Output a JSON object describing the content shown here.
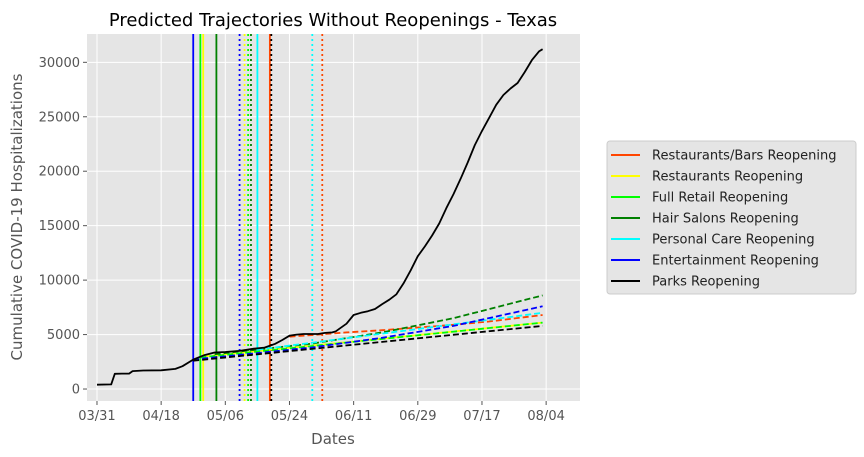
{
  "chart_data": {
    "type": "line",
    "title": "Predicted Trajectories Without Reopenings - Texas",
    "xlabel": "Dates",
    "ylabel": "Cumulative COVID-19 Hospitalizations",
    "x_range_days_from_0331": [
      -2.8,
      135.5
    ],
    "ylim": [
      -1100,
      32600
    ],
    "x_ticks": [
      {
        "label": "03/31",
        "day": 0
      },
      {
        "label": "04/18",
        "day": 18
      },
      {
        "label": "05/06",
        "day": 36
      },
      {
        "label": "05/24",
        "day": 54
      },
      {
        "label": "06/11",
        "day": 72
      },
      {
        "label": "06/29",
        "day": 90
      },
      {
        "label": "07/17",
        "day": 108
      },
      {
        "label": "08/04",
        "day": 126
      }
    ],
    "y_ticks": [
      0,
      5000,
      10000,
      15000,
      20000,
      25000,
      30000
    ],
    "grid": true,
    "legend_position": "right-outside",
    "legend": [
      {
        "name": "Restaurants/Bars Reopening",
        "color": "#ff4500"
      },
      {
        "name": "Restaurants Reopening",
        "color": "#ffff00"
      },
      {
        "name": "Full Retail Reopening",
        "color": "#00ff00"
      },
      {
        "name": "Hair Salons Reopening",
        "color": "#008000"
      },
      {
        "name": "Personal Care Reopening",
        "color": "#00ffff"
      },
      {
        "name": "Entertainment Reopening",
        "color": "#0000ff"
      },
      {
        "name": "Parks Reopening",
        "color": "#000000"
      }
    ],
    "actual_series": {
      "color": "#000000",
      "points": [
        [
          0,
          400
        ],
        [
          4,
          420
        ],
        [
          5,
          1400
        ],
        [
          7,
          1420
        ],
        [
          9,
          1420
        ],
        [
          10,
          1650
        ],
        [
          13,
          1700
        ],
        [
          18,
          1720
        ],
        [
          22,
          1850
        ],
        [
          24,
          2100
        ],
        [
          27,
          2700
        ],
        [
          30,
          3100
        ],
        [
          33,
          3350
        ],
        [
          36,
          3400
        ],
        [
          40,
          3500
        ],
        [
          44,
          3700
        ],
        [
          47,
          3800
        ],
        [
          50,
          4150
        ],
        [
          52,
          4500
        ],
        [
          54,
          4900
        ],
        [
          56,
          5000
        ],
        [
          58,
          5050
        ],
        [
          62,
          5050
        ],
        [
          64,
          5150
        ],
        [
          66,
          5200
        ],
        [
          67,
          5300
        ],
        [
          70,
          6000
        ],
        [
          72,
          6800
        ],
        [
          74,
          7000
        ],
        [
          76,
          7150
        ],
        [
          78,
          7350
        ],
        [
          80,
          7800
        ],
        [
          82,
          8200
        ],
        [
          84,
          8700
        ],
        [
          86,
          9700
        ],
        [
          88,
          10900
        ],
        [
          90,
          12200
        ],
        [
          92,
          13100
        ],
        [
          94,
          14100
        ],
        [
          96,
          15200
        ],
        [
          98,
          16600
        ],
        [
          100,
          17900
        ],
        [
          102,
          19300
        ],
        [
          104,
          20800
        ],
        [
          106,
          22400
        ],
        [
          108,
          23700
        ],
        [
          110,
          24900
        ],
        [
          112,
          26100
        ],
        [
          114,
          27000
        ],
        [
          116,
          27600
        ],
        [
          118,
          28100
        ],
        [
          120,
          29100
        ],
        [
          122,
          30200
        ],
        [
          124,
          31000
        ],
        [
          125,
          31200
        ]
      ]
    },
    "predicted_series": [
      {
        "name": "Restaurants/Bars Reopening",
        "color": "#ff4500",
        "points": [
          [
            54,
            4800
          ],
          [
            62,
            5000
          ],
          [
            70,
            5200
          ],
          [
            80,
            5400
          ],
          [
            90,
            5650
          ],
          [
            100,
            5900
          ],
          [
            110,
            6200
          ],
          [
            125,
            6800
          ]
        ]
      },
      {
        "name": "Restaurants Reopening",
        "color": "#ffff00",
        "points": [
          [
            30,
            3000
          ],
          [
            125,
            6100
          ]
        ]
      },
      {
        "name": "Full Retail Reopening",
        "color": "#00ff00",
        "points": [
          [
            29,
            2900
          ],
          [
            125,
            6100
          ]
        ]
      },
      {
        "name": "Hair Salons Reopening",
        "color": "#008000",
        "points": [
          [
            33,
            3200
          ],
          [
            60,
            4150
          ],
          [
            80,
            5200
          ],
          [
            100,
            6500
          ],
          [
            125,
            8600
          ]
        ]
      },
      {
        "name": "Personal Care Reopening",
        "color": "#00ffff",
        "points": [
          [
            45,
            3600
          ],
          [
            125,
            7000
          ]
        ]
      },
      {
        "name": "Entertainment Reopening",
        "color": "#0000ff",
        "points": [
          [
            27,
            2700
          ],
          [
            60,
            3800
          ],
          [
            80,
            4700
          ],
          [
            100,
            5800
          ],
          [
            125,
            7600
          ]
        ]
      },
      {
        "name": "Parks Reopening",
        "color": "#000000",
        "points": [
          [
            27,
            2600
          ],
          [
            125,
            5800
          ]
        ]
      }
    ],
    "event_lines": [
      {
        "day": 27.0,
        "color": "#0000ff",
        "style": "solid"
      },
      {
        "day": 29.0,
        "color": "#00ff00",
        "style": "solid"
      },
      {
        "day": 29.8,
        "color": "#ffff00",
        "style": "solid"
      },
      {
        "day": 33.5,
        "color": "#008000",
        "style": "solid"
      },
      {
        "day": 40.0,
        "color": "#0000ff",
        "style": "dotted"
      },
      {
        "day": 41.4,
        "color": "#ffff00",
        "style": "dotted"
      },
      {
        "day": 42.4,
        "color": "#00ff00",
        "style": "dotted"
      },
      {
        "day": 43.2,
        "color": "#008000",
        "style": "dotted"
      },
      {
        "day": 45.0,
        "color": "#00ffff",
        "style": "solid"
      },
      {
        "day": 48.5,
        "color": "#ff4500",
        "style": "solid"
      },
      {
        "day": 48.9,
        "color": "#000000",
        "style": "dotted"
      },
      {
        "day": 60.4,
        "color": "#00ffff",
        "style": "dotted"
      },
      {
        "day": 63.2,
        "color": "#ff4500",
        "style": "dotted"
      }
    ]
  }
}
